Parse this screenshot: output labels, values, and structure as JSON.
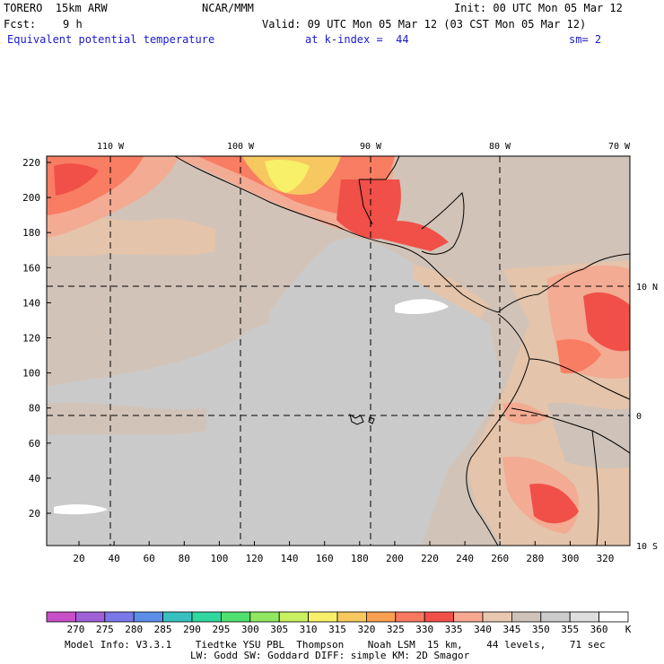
{
  "header": {
    "model": "TORERO  15km ARW",
    "org": "NCAR/MMM",
    "init": "Init: 00 UTC Mon 05 Mar 12",
    "fcst_label": "Fcst:",
    "fcst_value": "9 h",
    "valid": "Valid: 09 UTC Mon 05 Mar 12 (03 CST Mon 05 Mar 12)",
    "field": "Equivalent potential temperature",
    "level": "at k-index =  44",
    "smoothing": "sm= 2"
  },
  "map": {
    "lon_labels": [
      "110 W",
      "100 W",
      "90 W",
      "80 W",
      "70 W"
    ],
    "lat_labels": [
      "10 N",
      "0",
      "10 S"
    ],
    "x_ticks": [
      "20",
      "40",
      "60",
      "80",
      "100",
      "120",
      "140",
      "160",
      "180",
      "200",
      "220",
      "240",
      "260",
      "280",
      "300",
      "320"
    ],
    "y_ticks": [
      "220",
      "200",
      "180",
      "160",
      "140",
      "120",
      "100",
      "80",
      "60",
      "40",
      "20"
    ]
  },
  "colorbar": {
    "levels": [
      "270",
      "275",
      "280",
      "285",
      "290",
      "295",
      "300",
      "305",
      "310",
      "315",
      "320",
      "325",
      "330",
      "335",
      "340",
      "345",
      "350",
      "355",
      "360"
    ],
    "unit": "K",
    "colors": [
      "#c84fc8",
      "#a060d8",
      "#7a78e8",
      "#5a8ee8",
      "#38c0c0",
      "#30d8a0",
      "#50e070",
      "#90e860",
      "#c8f060",
      "#f8f068",
      "#f8c860",
      "#f8a050",
      "#f87860",
      "#f05048",
      "#f8a890",
      "#e8c8b0",
      "#cfc2b8",
      "#cccccc",
      "#dedede",
      "#ffffff"
    ]
  },
  "footer": {
    "line1": "Model Info: V3.3.1    Tiedtke YSU PBL  Thompson    Noah LSM  15 km,    44 levels,    71 sec",
    "line2": "LW: Godd SW: Goddard DIFF: simple KM: 2D Smagor"
  }
}
